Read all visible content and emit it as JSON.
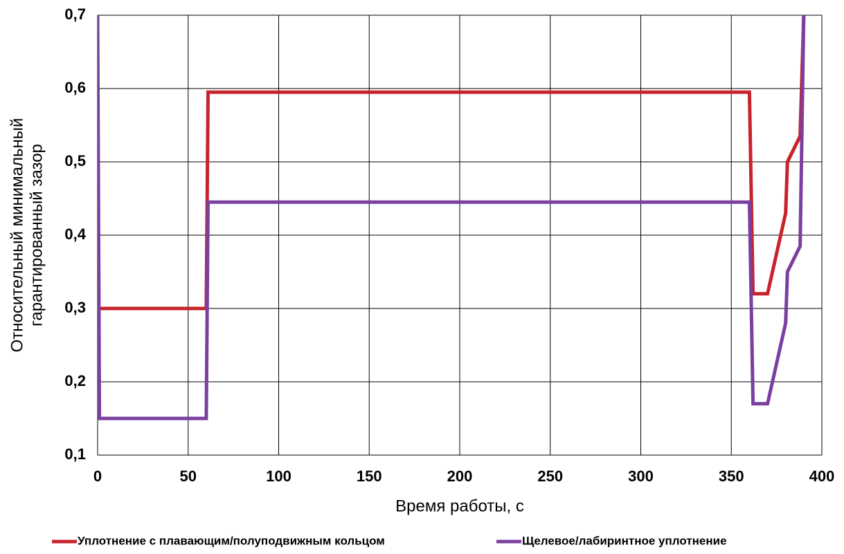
{
  "chart_data": {
    "type": "line",
    "xlabel": "Время работы, с",
    "ylabel": [
      "Относительный минимальный",
      "гарантированный зазор"
    ],
    "x": [
      0,
      1,
      60,
      61,
      360,
      362,
      370,
      380,
      381,
      388,
      390
    ],
    "series": [
      {
        "name": "Уплотнение с плавающим/полуподвижным кольцом",
        "color": "#c8232c",
        "values": [
          0.3,
          0.3,
          0.3,
          0.595,
          0.595,
          0.32,
          0.32,
          0.43,
          0.5,
          0.535,
          0.7
        ]
      },
      {
        "name": "Щелевое/лабиринтное уплотнение",
        "color": "#7b3fa0",
        "values": [
          0.7,
          0.15,
          0.15,
          0.445,
          0.445,
          0.17,
          0.17,
          0.28,
          0.35,
          0.385,
          0.7
        ]
      }
    ],
    "xlim": [
      0,
      400
    ],
    "xticks": [
      0,
      50,
      100,
      150,
      200,
      250,
      300,
      350,
      400
    ],
    "ylim": [
      0.1,
      0.7
    ],
    "yticks": [
      {
        "value": 0.1,
        "label": "0,1"
      },
      {
        "value": 0.2,
        "label": "0,2"
      },
      {
        "value": 0.3,
        "label": "0,3"
      },
      {
        "value": 0.4,
        "label": "0,4"
      },
      {
        "value": 0.5,
        "label": "0,5"
      },
      {
        "value": 0.6,
        "label": "0,6"
      },
      {
        "value": 0.7,
        "label": "0,7"
      }
    ],
    "grid": true,
    "legend": "bottom"
  }
}
